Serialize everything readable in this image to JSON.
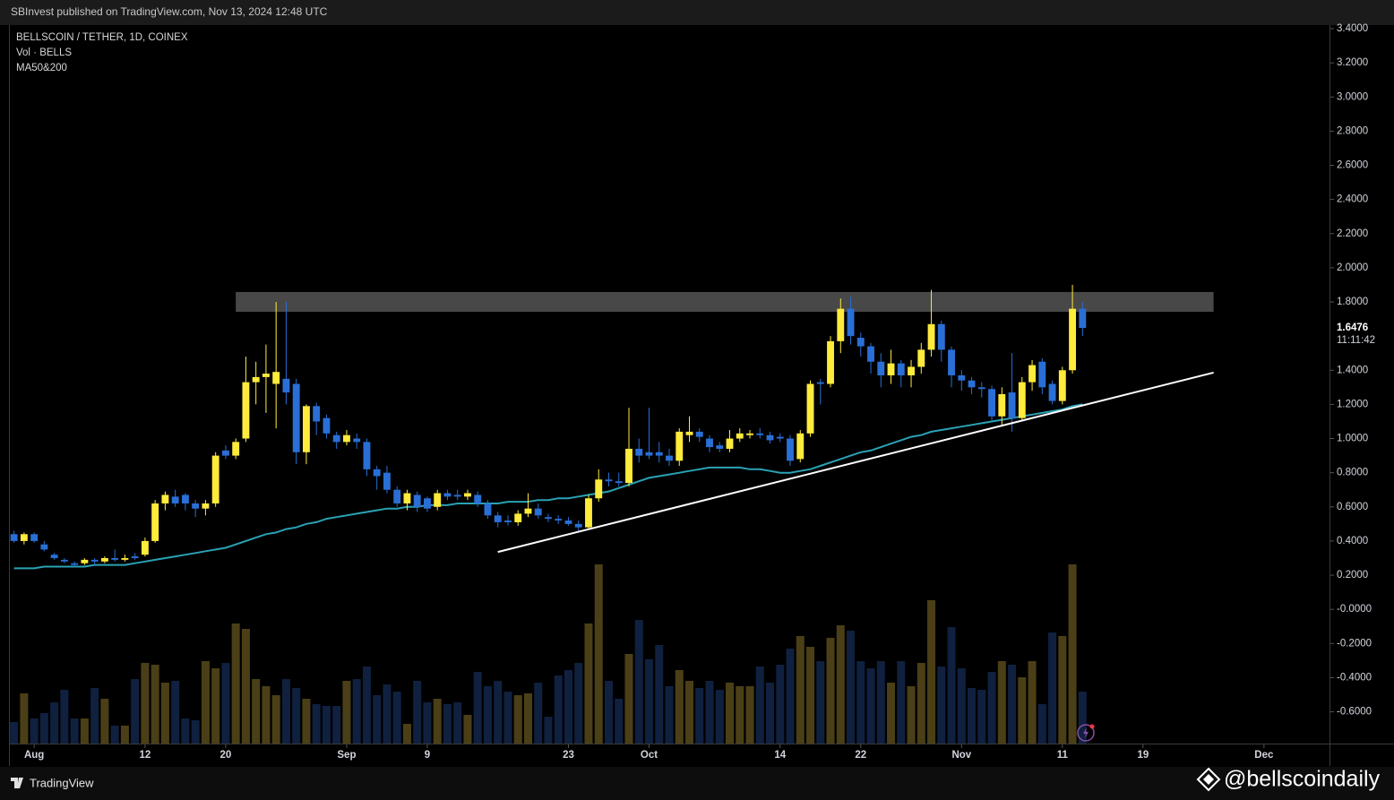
{
  "header": {
    "publish_note": "SBInvest published on TradingView.com, Nov 13, 2024 12:48 UTC"
  },
  "footer": {
    "brand": "TradingView",
    "watermark": "@bellscoindaily"
  },
  "chart_data": {
    "type": "candlestick",
    "legend": [
      "BELLSCOIN / TETHER, 1D, COINEX",
      "Vol · BELLS",
      "MA50&200"
    ],
    "up_color": "#ffeb3b",
    "down_color": "#2a6fd6",
    "volume_up_color": "#4a3f16",
    "volume_down_color": "#10203f",
    "ma_color": "#2aa2b5",
    "countdown": "11:11:42",
    "grid": false,
    "x": [
      "2024-07-30",
      "2024-07-31",
      "2024-08-01",
      "2024-08-02",
      "2024-08-03",
      "2024-08-04",
      "2024-08-05",
      "2024-08-06",
      "2024-08-07",
      "2024-08-08",
      "2024-08-09",
      "2024-08-10",
      "2024-08-11",
      "2024-08-12",
      "2024-08-13",
      "2024-08-14",
      "2024-08-15",
      "2024-08-16",
      "2024-08-17",
      "2024-08-18",
      "2024-08-19",
      "2024-08-20",
      "2024-08-21",
      "2024-08-22",
      "2024-08-23",
      "2024-08-24",
      "2024-08-25",
      "2024-08-26",
      "2024-08-27",
      "2024-08-28",
      "2024-08-29",
      "2024-08-30",
      "2024-08-31",
      "2024-09-01",
      "2024-09-02",
      "2024-09-03",
      "2024-09-04",
      "2024-09-05",
      "2024-09-06",
      "2024-09-07",
      "2024-09-08",
      "2024-09-09",
      "2024-09-10",
      "2024-09-11",
      "2024-09-12",
      "2024-09-13",
      "2024-09-14",
      "2024-09-15",
      "2024-09-16",
      "2024-09-17",
      "2024-09-18",
      "2024-09-19",
      "2024-09-20",
      "2024-09-21",
      "2024-09-22",
      "2024-09-23",
      "2024-09-24",
      "2024-09-25",
      "2024-09-26",
      "2024-09-27",
      "2024-09-28",
      "2024-09-29",
      "2024-09-30",
      "2024-10-01",
      "2024-10-02",
      "2024-10-03",
      "2024-10-04",
      "2024-10-05",
      "2024-10-06",
      "2024-10-07",
      "2024-10-08",
      "2024-10-09",
      "2024-10-10",
      "2024-10-11",
      "2024-10-12",
      "2024-10-13",
      "2024-10-14",
      "2024-10-15",
      "2024-10-16",
      "2024-10-17",
      "2024-10-18",
      "2024-10-19",
      "2024-10-20",
      "2024-10-21",
      "2024-10-22",
      "2024-10-23",
      "2024-10-24",
      "2024-10-25",
      "2024-10-26",
      "2024-10-27",
      "2024-10-28",
      "2024-10-29",
      "2024-10-30",
      "2024-10-31",
      "2024-11-01",
      "2024-11-02",
      "2024-11-03",
      "2024-11-04",
      "2024-11-05",
      "2024-11-06",
      "2024-11-07",
      "2024-11-08",
      "2024-11-09",
      "2024-11-10",
      "2024-11-11",
      "2024-11-12",
      "2024-11-13"
    ],
    "ohlc": [
      [
        0.44,
        0.46,
        0.39,
        0.4
      ],
      [
        0.4,
        0.45,
        0.38,
        0.44
      ],
      [
        0.44,
        0.45,
        0.39,
        0.4
      ],
      [
        0.38,
        0.4,
        0.34,
        0.35
      ],
      [
        0.32,
        0.33,
        0.29,
        0.3
      ],
      [
        0.29,
        0.3,
        0.27,
        0.28
      ],
      [
        0.27,
        0.28,
        0.25,
        0.26
      ],
      [
        0.27,
        0.3,
        0.26,
        0.29
      ],
      [
        0.29,
        0.3,
        0.26,
        0.28
      ],
      [
        0.28,
        0.31,
        0.27,
        0.3
      ],
      [
        0.3,
        0.35,
        0.28,
        0.29
      ],
      [
        0.29,
        0.32,
        0.28,
        0.3
      ],
      [
        0.31,
        0.33,
        0.29,
        0.3
      ],
      [
        0.32,
        0.42,
        0.31,
        0.4
      ],
      [
        0.4,
        0.64,
        0.39,
        0.62
      ],
      [
        0.62,
        0.69,
        0.58,
        0.67
      ],
      [
        0.66,
        0.7,
        0.6,
        0.62
      ],
      [
        0.67,
        0.68,
        0.58,
        0.62
      ],
      [
        0.62,
        0.64,
        0.54,
        0.59
      ],
      [
        0.59,
        0.64,
        0.55,
        0.62
      ],
      [
        0.62,
        0.92,
        0.6,
        0.9
      ],
      [
        0.93,
        0.96,
        0.88,
        0.9
      ],
      [
        0.9,
        1.0,
        0.88,
        0.98
      ],
      [
        1.0,
        1.48,
        0.98,
        1.33
      ],
      [
        1.33,
        1.45,
        1.2,
        1.36
      ],
      [
        1.36,
        1.55,
        1.15,
        1.38
      ],
      [
        1.32,
        1.8,
        1.06,
        1.39
      ],
      [
        1.35,
        1.8,
        1.2,
        1.27
      ],
      [
        1.32,
        1.35,
        0.85,
        0.92
      ],
      [
        0.92,
        1.2,
        0.85,
        1.19
      ],
      [
        1.19,
        1.21,
        1.02,
        1.1
      ],
      [
        1.12,
        1.14,
        1.0,
        1.03
      ],
      [
        1.02,
        1.04,
        0.94,
        0.98
      ],
      [
        0.98,
        1.05,
        0.96,
        1.02
      ],
      [
        1.0,
        1.03,
        0.94,
        0.98
      ],
      [
        0.98,
        1.0,
        0.78,
        0.82
      ],
      [
        0.82,
        0.84,
        0.7,
        0.78
      ],
      [
        0.8,
        0.84,
        0.68,
        0.7
      ],
      [
        0.7,
        0.72,
        0.6,
        0.62
      ],
      [
        0.62,
        0.7,
        0.58,
        0.68
      ],
      [
        0.67,
        0.69,
        0.57,
        0.6
      ],
      [
        0.65,
        0.66,
        0.57,
        0.59
      ],
      [
        0.6,
        0.7,
        0.58,
        0.68
      ],
      [
        0.68,
        0.7,
        0.64,
        0.66
      ],
      [
        0.67,
        0.7,
        0.64,
        0.66
      ],
      [
        0.66,
        0.7,
        0.64,
        0.68
      ],
      [
        0.67,
        0.69,
        0.6,
        0.62
      ],
      [
        0.62,
        0.64,
        0.53,
        0.55
      ],
      [
        0.55,
        0.57,
        0.48,
        0.51
      ],
      [
        0.52,
        0.55,
        0.49,
        0.51
      ],
      [
        0.51,
        0.58,
        0.49,
        0.56
      ],
      [
        0.56,
        0.68,
        0.54,
        0.59
      ],
      [
        0.59,
        0.62,
        0.53,
        0.55
      ],
      [
        0.54,
        0.56,
        0.51,
        0.53
      ],
      [
        0.53,
        0.55,
        0.5,
        0.52
      ],
      [
        0.52,
        0.54,
        0.49,
        0.5
      ],
      [
        0.5,
        0.52,
        0.45,
        0.48
      ],
      [
        0.48,
        0.67,
        0.47,
        0.65
      ],
      [
        0.65,
        0.82,
        0.63,
        0.76
      ],
      [
        0.76,
        0.8,
        0.72,
        0.75
      ],
      [
        0.75,
        0.8,
        0.72,
        0.74
      ],
      [
        0.74,
        1.18,
        0.72,
        0.94
      ],
      [
        0.94,
        1.0,
        0.86,
        0.9
      ],
      [
        0.92,
        1.18,
        0.88,
        0.9
      ],
      [
        0.92,
        0.98,
        0.86,
        0.9
      ],
      [
        0.9,
        0.94,
        0.84,
        0.87
      ],
      [
        0.87,
        1.06,
        0.84,
        1.04
      ],
      [
        1.02,
        1.13,
        0.98,
        1.04
      ],
      [
        1.04,
        1.06,
        0.98,
        1.01
      ],
      [
        1.0,
        1.02,
        0.92,
        0.95
      ],
      [
        0.96,
        0.98,
        0.92,
        0.94
      ],
      [
        0.94,
        1.05,
        0.92,
        1.0
      ],
      [
        1.0,
        1.06,
        0.98,
        1.03
      ],
      [
        1.02,
        1.05,
        1.0,
        1.03
      ],
      [
        1.03,
        1.06,
        1.0,
        1.02
      ],
      [
        1.02,
        1.04,
        0.97,
        0.99
      ],
      [
        1.01,
        1.03,
        0.98,
        1.0
      ],
      [
        1.0,
        1.02,
        0.84,
        0.87
      ],
      [
        0.88,
        1.05,
        0.86,
        1.03
      ],
      [
        1.03,
        1.34,
        1.01,
        1.32
      ],
      [
        1.33,
        1.35,
        1.2,
        1.32
      ],
      [
        1.32,
        1.6,
        1.3,
        1.57
      ],
      [
        1.57,
        1.82,
        1.5,
        1.76
      ],
      [
        1.76,
        1.83,
        1.55,
        1.6
      ],
      [
        1.59,
        1.62,
        1.48,
        1.54
      ],
      [
        1.54,
        1.56,
        1.38,
        1.45
      ],
      [
        1.45,
        1.5,
        1.3,
        1.37
      ],
      [
        1.37,
        1.52,
        1.32,
        1.44
      ],
      [
        1.44,
        1.46,
        1.3,
        1.37
      ],
      [
        1.37,
        1.46,
        1.3,
        1.42
      ],
      [
        1.42,
        1.56,
        1.38,
        1.52
      ],
      [
        1.52,
        1.87,
        1.48,
        1.67
      ],
      [
        1.67,
        1.69,
        1.45,
        1.52
      ],
      [
        1.52,
        1.54,
        1.3,
        1.37
      ],
      [
        1.37,
        1.4,
        1.28,
        1.34
      ],
      [
        1.34,
        1.36,
        1.26,
        1.3
      ],
      [
        1.3,
        1.33,
        1.24,
        1.29
      ],
      [
        1.29,
        1.31,
        1.1,
        1.13
      ],
      [
        1.13,
        1.3,
        1.08,
        1.26
      ],
      [
        1.27,
        1.5,
        1.04,
        1.12
      ],
      [
        1.12,
        1.36,
        1.1,
        1.33
      ],
      [
        1.33,
        1.46,
        1.28,
        1.43
      ],
      [
        1.45,
        1.47,
        1.26,
        1.3
      ],
      [
        1.32,
        1.34,
        1.2,
        1.22
      ],
      [
        1.22,
        1.42,
        1.2,
        1.4
      ],
      [
        1.4,
        1.9,
        1.38,
        1.76
      ],
      [
        1.76,
        1.8,
        1.6,
        1.6476
      ]
    ],
    "volume": [
      12,
      28,
      14,
      17,
      23,
      30,
      14,
      14,
      31,
      25,
      10,
      10,
      36,
      45,
      44,
      34,
      35,
      14,
      13,
      46,
      42,
      45,
      67,
      64,
      36,
      32,
      27,
      36,
      31,
      25,
      22,
      21,
      21,
      35,
      36,
      43,
      27,
      33,
      29,
      11,
      35,
      23,
      25,
      22,
      23,
      16,
      40,
      32,
      35,
      29,
      27,
      28,
      34,
      15,
      38,
      41,
      45,
      67,
      100,
      35,
      25,
      50,
      69,
      47,
      55,
      32,
      41,
      35,
      31,
      35,
      30,
      34,
      32,
      32,
      43,
      34,
      44,
      53,
      60,
      54,
      46,
      59,
      66,
      63,
      46,
      42,
      46,
      34,
      46,
      32,
      45,
      80,
      43,
      65,
      42,
      31,
      30,
      40,
      46,
      44,
      37,
      46,
      22,
      62,
      60,
      100,
      29
    ],
    "ma50": [
      0.24,
      0.24,
      0.24,
      0.25,
      0.25,
      0.25,
      0.25,
      0.25,
      0.26,
      0.26,
      0.26,
      0.26,
      0.27,
      0.28,
      0.29,
      0.3,
      0.31,
      0.32,
      0.33,
      0.34,
      0.35,
      0.36,
      0.38,
      0.4,
      0.42,
      0.44,
      0.45,
      0.47,
      0.48,
      0.5,
      0.51,
      0.53,
      0.54,
      0.55,
      0.56,
      0.57,
      0.58,
      0.59,
      0.59,
      0.6,
      0.6,
      0.61,
      0.61,
      0.61,
      0.62,
      0.62,
      0.62,
      0.62,
      0.62,
      0.63,
      0.63,
      0.63,
      0.64,
      0.64,
      0.65,
      0.65,
      0.66,
      0.67,
      0.68,
      0.69,
      0.71,
      0.73,
      0.75,
      0.77,
      0.78,
      0.79,
      0.8,
      0.81,
      0.82,
      0.83,
      0.83,
      0.83,
      0.83,
      0.82,
      0.82,
      0.81,
      0.8,
      0.8,
      0.81,
      0.82,
      0.84,
      0.86,
      0.88,
      0.9,
      0.92,
      0.93,
      0.95,
      0.97,
      0.99,
      1.01,
      1.02,
      1.04,
      1.05,
      1.06,
      1.07,
      1.08,
      1.09,
      1.1,
      1.11,
      1.12,
      1.13,
      1.14,
      1.15,
      1.16,
      1.17,
      1.19,
      1.2
    ],
    "zone": {
      "x": [
        "2024-08-21",
        "2024-11-26"
      ],
      "y": [
        1.742,
        1.858
      ]
    },
    "trendline": {
      "x": [
        "2024-09-16",
        "2024-11-26"
      ],
      "y": [
        0.336,
        1.386
      ]
    },
    "xlim": [
      "2024-07-29T12:00Z",
      "2024-12-07T12:00Z"
    ],
    "xticks": [
      {
        "value": "2024-08-01",
        "label": "Aug"
      },
      {
        "value": "2024-08-12",
        "label": "12"
      },
      {
        "value": "2024-08-20",
        "label": "20"
      },
      {
        "value": "2024-09-01",
        "label": "Sep"
      },
      {
        "value": "2024-09-09",
        "label": "9"
      },
      {
        "value": "2024-09-23",
        "label": "23"
      },
      {
        "value": "2024-10-01",
        "label": "Oct"
      },
      {
        "value": "2024-10-14",
        "label": "14"
      },
      {
        "value": "2024-10-22",
        "label": "22"
      },
      {
        "value": "2024-11-01",
        "label": "Nov"
      },
      {
        "value": "2024-11-11",
        "label": "11"
      },
      {
        "value": "2024-11-19",
        "label": "19"
      },
      {
        "value": "2024-12-01",
        "label": "Dec"
      }
    ],
    "ylim": [
      -0.786,
      3.421
    ],
    "yticks": [
      {
        "value": 3.4,
        "label": "3.4000"
      },
      {
        "value": 3.2,
        "label": "3.2000"
      },
      {
        "value": 3.0,
        "label": "3.0000"
      },
      {
        "value": 2.8,
        "label": "2.8000"
      },
      {
        "value": 2.6,
        "label": "2.6000"
      },
      {
        "value": 2.4,
        "label": "2.4000"
      },
      {
        "value": 2.2,
        "label": "2.2000"
      },
      {
        "value": 2.0,
        "label": "2.0000"
      },
      {
        "value": 1.8,
        "label": "1.8000"
      },
      {
        "value": 1.4,
        "label": "1.4000"
      },
      {
        "value": 1.2,
        "label": "1.2000"
      },
      {
        "value": 1.0,
        "label": "1.0000"
      },
      {
        "value": 0.8,
        "label": "0.8000"
      },
      {
        "value": 0.6,
        "label": "0.6000"
      },
      {
        "value": 0.4,
        "label": "0.4000"
      },
      {
        "value": 0.2,
        "label": "0.2000"
      },
      {
        "value": 0,
        "label": "-0.0000"
      },
      {
        "value": -0.2,
        "label": "-0.2000"
      },
      {
        "value": -0.4,
        "label": "-0.4000"
      },
      {
        "value": -0.6,
        "label": "-0.6000"
      }
    ]
  }
}
